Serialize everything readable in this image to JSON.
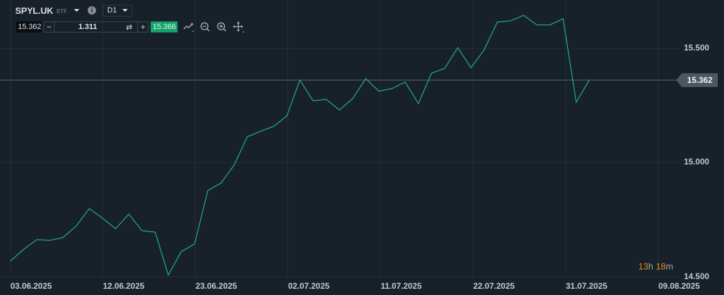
{
  "header": {
    "symbol": "SPYL.UK",
    "asset_type": "ETF",
    "info_icon": "info-icon",
    "timeframe": "D1"
  },
  "trade_bar": {
    "bid_price": "15.362",
    "quantity": "1.311",
    "minus_label": "−",
    "plus_label": "+",
    "swap_icon": "⇄",
    "ask_price": "15.366",
    "tools": [
      "chart-type-icon",
      "zoom-out-icon",
      "zoom-in-icon",
      "move-icon"
    ]
  },
  "price_axis": {
    "labels": [
      "15.500",
      "15.000",
      "14.500"
    ],
    "current_price": "15.362"
  },
  "time_axis": {
    "labels": [
      "03.06.2025",
      "12.06.2025",
      "23.06.2025",
      "02.07.2025",
      "11.07.2025",
      "22.07.2025",
      "31.07.2025",
      "09.08.2025"
    ]
  },
  "countdown": {
    "hours": "13",
    "h_unit": "h",
    "minutes": "18",
    "m_unit": "m"
  },
  "colors": {
    "background": "#18212a",
    "line": "#1fa774",
    "grid": "#242e37",
    "ask_bg": "#12a36b",
    "price_tag_bg": "#4a5864",
    "countdown_accent": "#e38a14"
  },
  "chart_data": {
    "type": "line",
    "title": "SPYL.UK D1",
    "xlabel": "",
    "ylabel": "",
    "ylim": [
      14.5,
      15.7
    ],
    "grid": true,
    "x_ticks": [
      "03.06.2025",
      "12.06.2025",
      "23.06.2025",
      "02.07.2025",
      "11.07.2025",
      "22.07.2025",
      "31.07.2025",
      "09.08.2025"
    ],
    "y_ticks": [
      14.5,
      15.0,
      15.5
    ],
    "current_price": 15.362,
    "series": [
      {
        "name": "SPYL.UK close",
        "values": [
          14.567,
          14.618,
          14.661,
          14.658,
          14.67,
          14.721,
          14.797,
          14.755,
          14.709,
          14.773,
          14.7,
          14.694,
          14.506,
          14.609,
          14.642,
          14.876,
          14.909,
          14.988,
          15.112,
          15.136,
          15.158,
          15.203,
          15.361,
          15.27,
          15.276,
          15.23,
          15.279,
          15.367,
          15.312,
          15.324,
          15.352,
          15.258,
          15.391,
          15.412,
          15.503,
          15.415,
          15.494,
          15.615,
          15.621,
          15.645,
          15.603,
          15.603,
          15.63,
          15.264,
          15.362
        ]
      }
    ]
  }
}
